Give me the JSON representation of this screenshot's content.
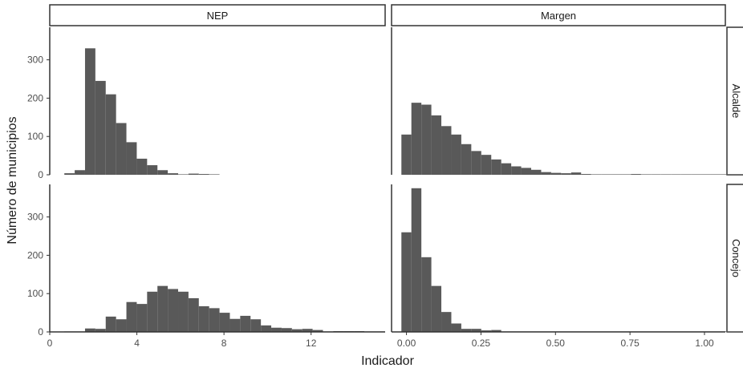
{
  "chart_data": {
    "type": "bar",
    "subtype": "faceted-histogram",
    "xlabel": "Indicador",
    "ylabel": "Número de municipios",
    "bar_color": "#595959",
    "grid": false,
    "columns": [
      {
        "label": "NEP",
        "xlim": [
          0,
          15.4
        ],
        "ticks": [
          0,
          4,
          8,
          12
        ]
      },
      {
        "label": "Margen",
        "xlim": [
          -0.05,
          1.07
        ],
        "ticks": [
          "0.00",
          "0.25",
          "0.50",
          "0.75",
          "1.00"
        ]
      }
    ],
    "rows": [
      {
        "label": "Alcalde",
        "ylim": [
          0,
          385
        ],
        "ticks": [
          0,
          100,
          200,
          300
        ]
      },
      {
        "label": "Concejo",
        "ylim": [
          0,
          385
        ],
        "ticks": [
          0,
          100,
          200,
          300
        ]
      }
    ],
    "panels": [
      {
        "name": "NEP-Alcalde",
        "column": 0,
        "row": 0,
        "bin_width": 0.475,
        "x_start": 0.67,
        "counts": [
          4,
          12,
          330,
          245,
          210,
          135,
          85,
          42,
          25,
          12,
          4,
          0,
          3,
          2,
          1
        ]
      },
      {
        "name": "Margen-Alcalde",
        "column": 1,
        "row": 0,
        "bin_width": 0.0335,
        "x_start": -0.017,
        "counts": [
          105,
          188,
          183,
          155,
          127,
          105,
          80,
          62,
          52,
          40,
          30,
          22,
          18,
          13,
          7,
          5,
          4,
          6,
          2,
          1,
          1,
          0,
          0,
          2,
          0,
          0,
          0,
          0,
          0,
          0,
          0,
          1,
          0,
          0,
          0,
          0,
          0
        ]
      },
      {
        "name": "NEP-Concejo",
        "column": 0,
        "row": 1,
        "bin_width": 0.475,
        "x_start": 0.67,
        "counts": [
          1,
          1,
          9,
          8,
          40,
          33,
          78,
          73,
          105,
          120,
          112,
          105,
          88,
          67,
          62,
          50,
          34,
          42,
          33,
          17,
          11,
          10,
          7,
          8,
          5,
          1,
          2,
          2,
          2,
          1,
          0
        ]
      },
      {
        "name": "Margen-Concejo",
        "column": 1,
        "row": 1,
        "bin_width": 0.0335,
        "x_start": -0.017,
        "counts": [
          260,
          375,
          195,
          120,
          52,
          22,
          8,
          8,
          4,
          5,
          0,
          0,
          0,
          0,
          0,
          0,
          0,
          0,
          1,
          0,
          0,
          0,
          0,
          0,
          0,
          0,
          0,
          0,
          0,
          0,
          0,
          0,
          0,
          0,
          0,
          0,
          0
        ]
      }
    ]
  }
}
